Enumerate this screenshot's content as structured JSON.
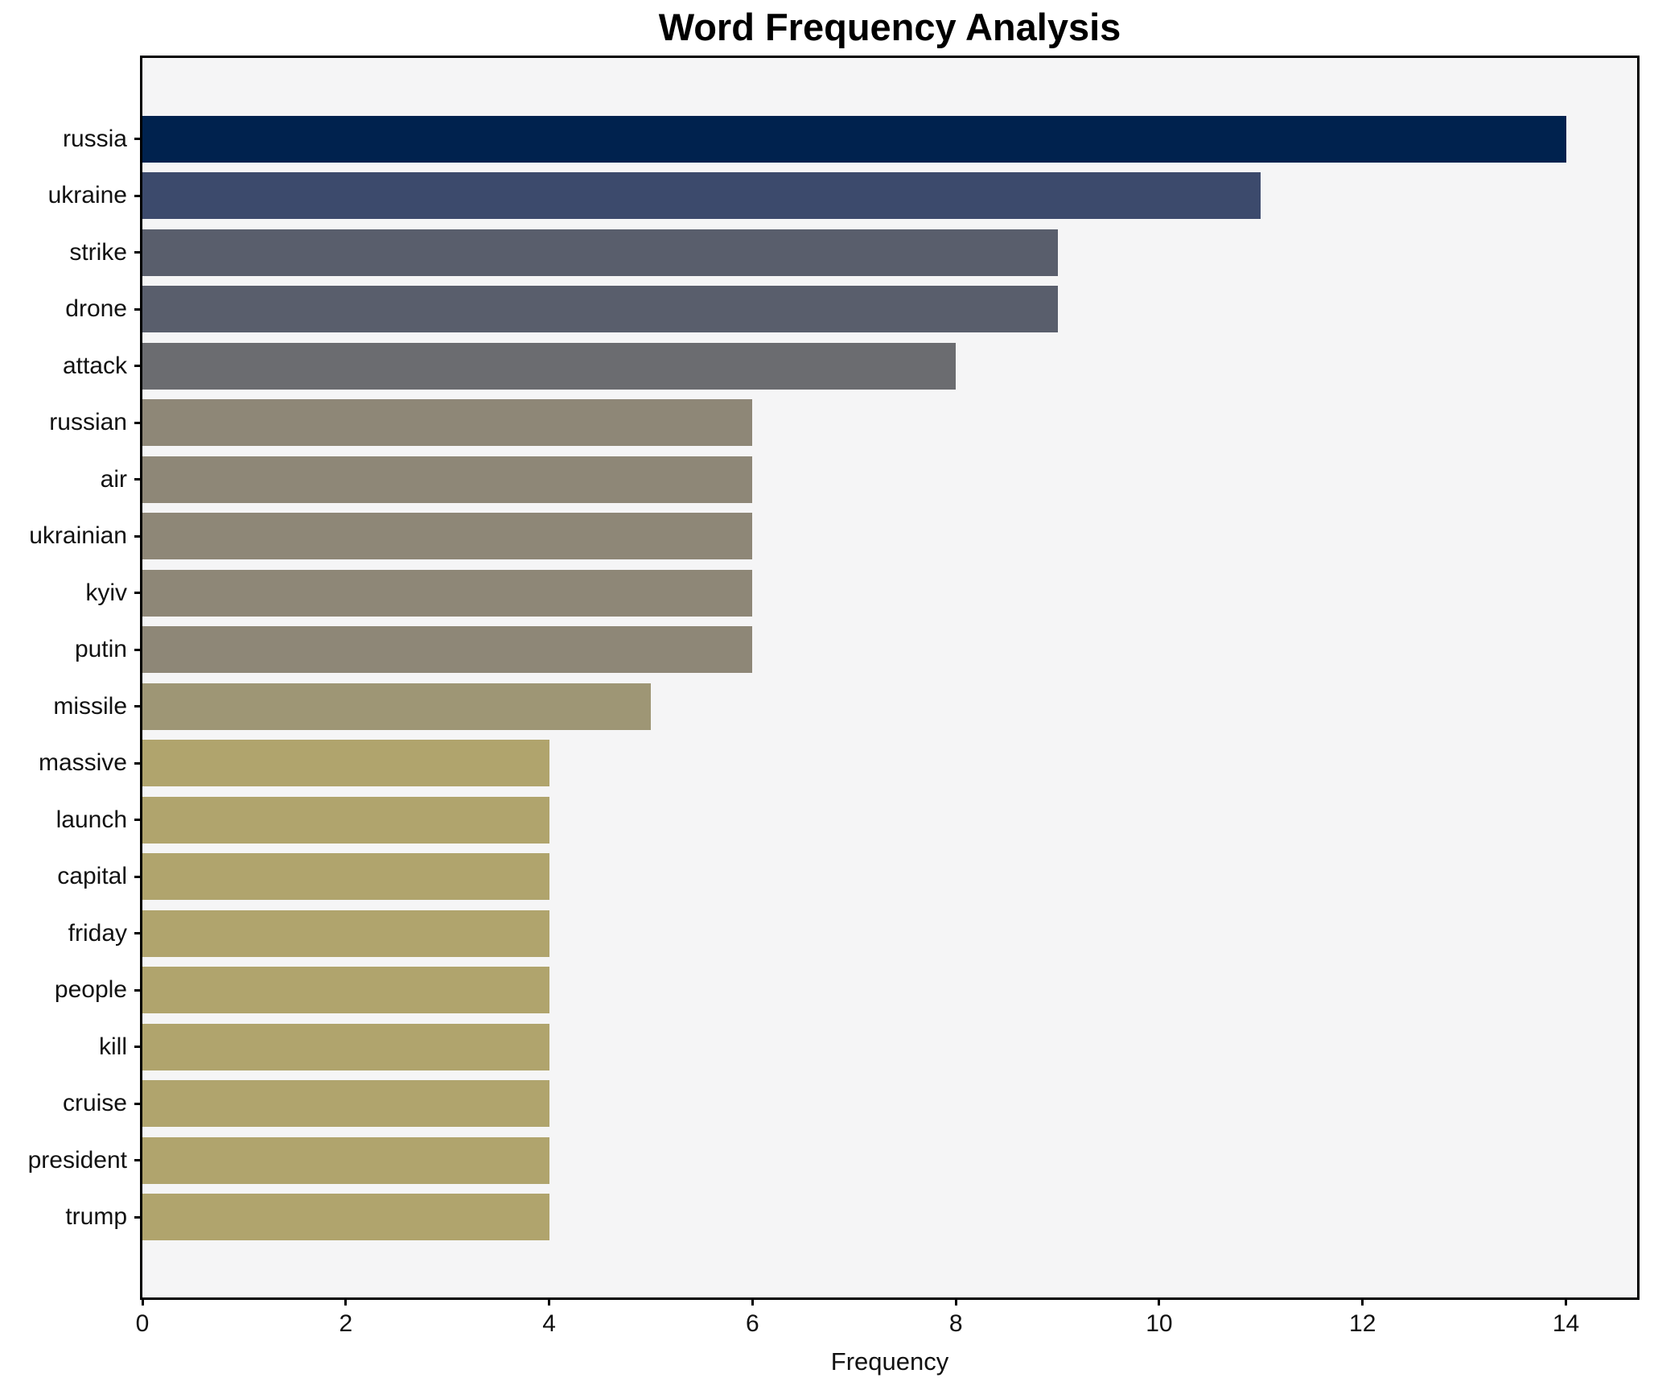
{
  "chart_data": {
    "type": "bar",
    "orientation": "horizontal",
    "title": "Word Frequency Analysis",
    "xlabel": "Frequency",
    "ylabel": "",
    "categories": [
      "russia",
      "ukraine",
      "strike",
      "drone",
      "attack",
      "russian",
      "air",
      "ukrainian",
      "kyiv",
      "putin",
      "missile",
      "massive",
      "launch",
      "capital",
      "friday",
      "people",
      "kill",
      "cruise",
      "president",
      "trump"
    ],
    "values": [
      14,
      11,
      9,
      9,
      8,
      6,
      6,
      6,
      6,
      6,
      5,
      4,
      4,
      4,
      4,
      4,
      4,
      4,
      4,
      4
    ],
    "bar_colors": [
      "#00224e",
      "#3c4a6c",
      "#595e6c",
      "#595e6c",
      "#6b6c70",
      "#8e8777",
      "#8e8777",
      "#8e8777",
      "#8e8777",
      "#8e8777",
      "#9e9675",
      "#b0a46d",
      "#b0a46d",
      "#b0a46d",
      "#b0a46d",
      "#b0a46d",
      "#b0a46d",
      "#b0a46d",
      "#b0a46d",
      "#b0a46d"
    ],
    "xticks": [
      0,
      2,
      4,
      6,
      8,
      10,
      12,
      14
    ],
    "xlim": [
      0,
      14.7
    ],
    "grid": false,
    "legend": false,
    "plot_background": "#f5f5f6",
    "figure_background": "#ffffff",
    "spine_color": "#000000",
    "title_color": "#000000",
    "tick_color": "#111111"
  }
}
